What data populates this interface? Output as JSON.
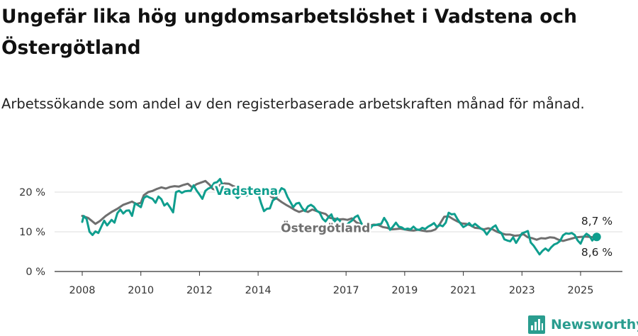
{
  "header": {
    "title": "Ungefär lika hög ungdomsarbetslöshet i Vadstena och Östergötland",
    "subtitle": "Arbetssökande som andel av den registerbaserade arbetskraften månad för månad."
  },
  "brand": {
    "name": "Newsworthy",
    "icon": "newsworthy-logo-icon",
    "color": "#2a9d8f"
  },
  "chart_data": {
    "type": "line",
    "title": "Ungefär lika hög ungdomsarbetslöshet i Vadstena och Östergötland",
    "subtitle": "Arbetssökande som andel av den registerbaserade arbetskraften månad för månad.",
    "xlim": [
      2007.5,
      2026.5
    ],
    "ylim": [
      0,
      22
    ],
    "x_ticks": [
      2008,
      2010,
      2012,
      2014,
      2017,
      2019,
      2021,
      2023,
      2025
    ],
    "y_ticks": [
      0,
      10,
      20
    ],
    "y_tick_labels": [
      "0 %",
      "10 %",
      "20 %"
    ],
    "grid": "horizontal",
    "legend": "inline-labels",
    "series": [
      {
        "name": "Östergötland",
        "color": "#6f6f6f",
        "label_at": [
          2016.3,
          9.9
        ],
        "end_label": "8,6 %",
        "points": [
          [
            2008.0,
            14.0
          ],
          [
            2008.2,
            13.5
          ],
          [
            2008.45,
            12.0
          ],
          [
            2008.6,
            12.7
          ],
          [
            2008.8,
            14.0
          ],
          [
            2009.0,
            15.0
          ],
          [
            2009.2,
            15.8
          ],
          [
            2009.4,
            16.8
          ],
          [
            2009.55,
            17.2
          ],
          [
            2009.7,
            17.6
          ],
          [
            2009.85,
            17.0
          ],
          [
            2010.0,
            17.3
          ],
          [
            2010.1,
            19.2
          ],
          [
            2010.25,
            20.0
          ],
          [
            2010.4,
            20.3
          ],
          [
            2010.55,
            20.8
          ],
          [
            2010.7,
            21.2
          ],
          [
            2010.85,
            20.9
          ],
          [
            2011.0,
            21.3
          ],
          [
            2011.15,
            21.5
          ],
          [
            2011.3,
            21.4
          ],
          [
            2011.45,
            21.8
          ],
          [
            2011.6,
            22.1
          ],
          [
            2011.75,
            21.2
          ],
          [
            2011.9,
            22.0
          ],
          [
            2012.05,
            22.4
          ],
          [
            2012.2,
            22.8
          ],
          [
            2012.35,
            21.8
          ],
          [
            2012.45,
            20.8
          ],
          [
            2012.55,
            20.6
          ],
          [
            2012.7,
            21.8
          ],
          [
            2012.85,
            22.2
          ],
          [
            2013.0,
            22.1
          ],
          [
            2013.15,
            21.5
          ],
          [
            2013.3,
            21.1
          ],
          [
            2013.45,
            20.7
          ],
          [
            2013.6,
            20.5
          ],
          [
            2013.75,
            20.6
          ],
          [
            2013.9,
            20.7
          ],
          [
            2014.05,
            20.2
          ],
          [
            2014.2,
            19.8
          ],
          [
            2014.35,
            19.3
          ],
          [
            2014.5,
            18.6
          ],
          [
            2014.65,
            18.3
          ],
          [
            2014.8,
            17.5
          ],
          [
            2014.95,
            16.8
          ],
          [
            2015.1,
            16.2
          ],
          [
            2015.25,
            15.5
          ],
          [
            2015.4,
            15.0
          ],
          [
            2015.55,
            15.4
          ],
          [
            2015.7,
            15.0
          ],
          [
            2015.85,
            15.6
          ],
          [
            2016.0,
            15.2
          ],
          [
            2016.15,
            14.8
          ],
          [
            2016.3,
            14.5
          ],
          [
            2016.45,
            13.5
          ],
          [
            2016.6,
            13.3
          ],
          [
            2016.75,
            13.1
          ],
          [
            2016.9,
            13.2
          ],
          [
            2017.05,
            13.0
          ],
          [
            2017.2,
            13.4
          ],
          [
            2017.35,
            12.4
          ],
          [
            2017.5,
            11.9
          ],
          [
            2017.65,
            11.3
          ],
          [
            2017.8,
            11.6
          ],
          [
            2017.95,
            11.8
          ],
          [
            2018.1,
            11.7
          ],
          [
            2018.25,
            11.2
          ],
          [
            2018.4,
            11.0
          ],
          [
            2018.55,
            10.6
          ],
          [
            2018.7,
            10.7
          ],
          [
            2018.85,
            10.8
          ],
          [
            2019.0,
            10.6
          ],
          [
            2019.15,
            10.4
          ],
          [
            2019.3,
            10.3
          ],
          [
            2019.45,
            10.5
          ],
          [
            2019.6,
            10.3
          ],
          [
            2019.75,
            10.1
          ],
          [
            2019.9,
            10.2
          ],
          [
            2020.05,
            10.6
          ],
          [
            2020.2,
            12.0
          ],
          [
            2020.35,
            13.8
          ],
          [
            2020.5,
            13.9
          ],
          [
            2020.65,
            13.2
          ],
          [
            2020.8,
            12.6
          ],
          [
            2020.95,
            12.1
          ],
          [
            2021.1,
            12.0
          ],
          [
            2021.25,
            11.6
          ],
          [
            2021.4,
            11.0
          ],
          [
            2021.55,
            10.9
          ],
          [
            2021.7,
            10.6
          ],
          [
            2021.85,
            10.9
          ],
          [
            2022.0,
            10.6
          ],
          [
            2022.15,
            10.0
          ],
          [
            2022.3,
            9.6
          ],
          [
            2022.45,
            9.3
          ],
          [
            2022.6,
            9.3
          ],
          [
            2022.75,
            9.0
          ],
          [
            2022.9,
            9.1
          ],
          [
            2023.05,
            9.4
          ],
          [
            2023.2,
            8.6
          ],
          [
            2023.35,
            8.4
          ],
          [
            2023.5,
            8.0
          ],
          [
            2023.65,
            8.4
          ],
          [
            2023.8,
            8.3
          ],
          [
            2023.95,
            8.6
          ],
          [
            2024.1,
            8.5
          ],
          [
            2024.25,
            8.0
          ],
          [
            2024.4,
            7.7
          ],
          [
            2024.55,
            8.0
          ],
          [
            2024.7,
            8.3
          ],
          [
            2024.85,
            8.6
          ],
          [
            2025.0,
            8.7
          ],
          [
            2025.15,
            8.8
          ],
          [
            2025.3,
            8.7
          ],
          [
            2025.45,
            8.6
          ],
          [
            2025.55,
            8.6
          ]
        ]
      },
      {
        "name": "Vadstena",
        "color": "#0f9e8e",
        "label_at": [
          2013.6,
          19.3
        ],
        "end_label": "8,7 %",
        "points": [
          [
            2008.0,
            12.5
          ],
          [
            2008.05,
            14.0
          ],
          [
            2008.15,
            13.2
          ],
          [
            2008.25,
            10.0
          ],
          [
            2008.35,
            9.2
          ],
          [
            2008.45,
            10.1
          ],
          [
            2008.55,
            9.7
          ],
          [
            2008.65,
            11.3
          ],
          [
            2008.75,
            12.8
          ],
          [
            2008.85,
            11.6
          ],
          [
            2009.0,
            13.0
          ],
          [
            2009.1,
            12.3
          ],
          [
            2009.2,
            14.7
          ],
          [
            2009.3,
            15.6
          ],
          [
            2009.4,
            14.6
          ],
          [
            2009.5,
            15.3
          ],
          [
            2009.6,
            15.4
          ],
          [
            2009.7,
            14.0
          ],
          [
            2009.8,
            17.2
          ],
          [
            2009.9,
            16.7
          ],
          [
            2010.0,
            16.2
          ],
          [
            2010.1,
            18.5
          ],
          [
            2010.2,
            19.0
          ],
          [
            2010.3,
            18.6
          ],
          [
            2010.4,
            18.3
          ],
          [
            2010.5,
            17.3
          ],
          [
            2010.6,
            18.9
          ],
          [
            2010.7,
            18.2
          ],
          [
            2010.8,
            16.6
          ],
          [
            2010.9,
            17.2
          ],
          [
            2011.0,
            16.1
          ],
          [
            2011.1,
            14.9
          ],
          [
            2011.2,
            20.0
          ],
          [
            2011.3,
            20.3
          ],
          [
            2011.4,
            19.8
          ],
          [
            2011.5,
            20.2
          ],
          [
            2011.6,
            20.3
          ],
          [
            2011.7,
            20.3
          ],
          [
            2011.8,
            21.7
          ],
          [
            2011.9,
            20.4
          ],
          [
            2012.0,
            19.4
          ],
          [
            2012.1,
            18.3
          ],
          [
            2012.2,
            20.3
          ],
          [
            2012.3,
            20.9
          ],
          [
            2012.4,
            21.2
          ],
          [
            2012.5,
            22.3
          ],
          [
            2012.6,
            22.5
          ],
          [
            2012.7,
            23.3
          ],
          [
            2012.8,
            21.5
          ],
          [
            2012.9,
            20.4
          ],
          [
            2013.0,
            20.3
          ],
          [
            2013.1,
            20.8
          ],
          [
            2013.2,
            19.2
          ],
          [
            2013.3,
            18.5
          ],
          [
            2013.4,
            19.2
          ],
          [
            2013.5,
            19.4
          ],
          [
            2013.6,
            19.1
          ],
          [
            2013.7,
            19.4
          ],
          [
            2013.8,
            20.0
          ],
          [
            2013.9,
            20.4
          ],
          [
            2014.0,
            19.7
          ],
          [
            2014.1,
            17.2
          ],
          [
            2014.2,
            15.2
          ],
          [
            2014.3,
            15.8
          ],
          [
            2014.4,
            15.9
          ],
          [
            2014.5,
            17.9
          ],
          [
            2014.6,
            18.4
          ],
          [
            2014.7,
            19.8
          ],
          [
            2014.8,
            21.0
          ],
          [
            2014.9,
            20.6
          ],
          [
            2015.0,
            18.8
          ],
          [
            2015.1,
            17.5
          ],
          [
            2015.2,
            16.2
          ],
          [
            2015.3,
            17.1
          ],
          [
            2015.4,
            17.3
          ],
          [
            2015.5,
            16.0
          ],
          [
            2015.6,
            15.2
          ],
          [
            2015.7,
            16.4
          ],
          [
            2015.8,
            16.8
          ],
          [
            2015.9,
            16.3
          ],
          [
            2016.0,
            15.3
          ],
          [
            2016.1,
            14.8
          ],
          [
            2016.2,
            13.3
          ],
          [
            2016.3,
            12.6
          ],
          [
            2016.4,
            13.7
          ],
          [
            2016.5,
            14.4
          ],
          [
            2016.6,
            12.5
          ],
          [
            2016.7,
            13.4
          ],
          [
            2016.8,
            12.7
          ],
          [
            2016.9,
            11.2
          ],
          [
            2017.0,
            11.5
          ],
          [
            2017.1,
            12.3
          ],
          [
            2017.2,
            12.8
          ],
          [
            2017.3,
            13.7
          ],
          [
            2017.4,
            14.1
          ],
          [
            2017.5,
            12.5
          ],
          [
            2017.6,
            11.0
          ],
          [
            2017.7,
            10.1
          ],
          [
            2017.8,
            10.5
          ],
          [
            2017.9,
            11.6
          ],
          [
            2018.0,
            11.7
          ],
          [
            2018.1,
            11.9
          ],
          [
            2018.2,
            12.0
          ],
          [
            2018.3,
            13.5
          ],
          [
            2018.4,
            12.3
          ],
          [
            2018.5,
            10.5
          ],
          [
            2018.6,
            11.3
          ],
          [
            2018.7,
            12.3
          ],
          [
            2018.8,
            11.3
          ],
          [
            2018.9,
            11.1
          ],
          [
            2019.0,
            10.6
          ],
          [
            2019.1,
            10.8
          ],
          [
            2019.2,
            10.6
          ],
          [
            2019.3,
            11.3
          ],
          [
            2019.4,
            10.6
          ],
          [
            2019.5,
            10.5
          ],
          [
            2019.6,
            11.0
          ],
          [
            2019.7,
            10.7
          ],
          [
            2019.8,
            11.3
          ],
          [
            2019.9,
            11.7
          ],
          [
            2020.0,
            12.2
          ],
          [
            2020.1,
            11.2
          ],
          [
            2020.2,
            11.7
          ],
          [
            2020.3,
            11.4
          ],
          [
            2020.4,
            12.3
          ],
          [
            2020.5,
            14.8
          ],
          [
            2020.6,
            14.4
          ],
          [
            2020.7,
            14.5
          ],
          [
            2020.8,
            13.2
          ],
          [
            2020.9,
            12.1
          ],
          [
            2021.0,
            11.2
          ],
          [
            2021.1,
            11.6
          ],
          [
            2021.2,
            12.2
          ],
          [
            2021.3,
            11.4
          ],
          [
            2021.4,
            12.0
          ],
          [
            2021.5,
            11.4
          ],
          [
            2021.6,
            10.8
          ],
          [
            2021.7,
            10.4
          ],
          [
            2021.8,
            9.3
          ],
          [
            2021.9,
            10.3
          ],
          [
            2022.0,
            11.1
          ],
          [
            2022.1,
            11.6
          ],
          [
            2022.2,
            10.2
          ],
          [
            2022.3,
            9.7
          ],
          [
            2022.4,
            8.1
          ],
          [
            2022.5,
            7.8
          ],
          [
            2022.6,
            7.6
          ],
          [
            2022.7,
            8.6
          ],
          [
            2022.8,
            7.2
          ],
          [
            2022.9,
            8.4
          ],
          [
            2023.0,
            9.6
          ],
          [
            2023.1,
            9.9
          ],
          [
            2023.2,
            10.2
          ],
          [
            2023.3,
            7.3
          ],
          [
            2023.4,
            6.5
          ],
          [
            2023.5,
            5.4
          ],
          [
            2023.6,
            4.3
          ],
          [
            2023.7,
            5.2
          ],
          [
            2023.8,
            5.8
          ],
          [
            2023.9,
            5.2
          ],
          [
            2024.0,
            6.1
          ],
          [
            2024.1,
            6.8
          ],
          [
            2024.2,
            7.1
          ],
          [
            2024.3,
            7.7
          ],
          [
            2024.4,
            9.1
          ],
          [
            2024.5,
            9.6
          ],
          [
            2024.6,
            9.5
          ],
          [
            2024.7,
            9.7
          ],
          [
            2024.8,
            9.2
          ],
          [
            2024.9,
            7.8
          ],
          [
            2025.0,
            7.0
          ],
          [
            2025.1,
            8.7
          ],
          [
            2025.2,
            9.5
          ],
          [
            2025.3,
            9.0
          ],
          [
            2025.4,
            7.8
          ],
          [
            2025.5,
            8.7
          ],
          [
            2025.55,
            8.7
          ]
        ]
      }
    ]
  }
}
